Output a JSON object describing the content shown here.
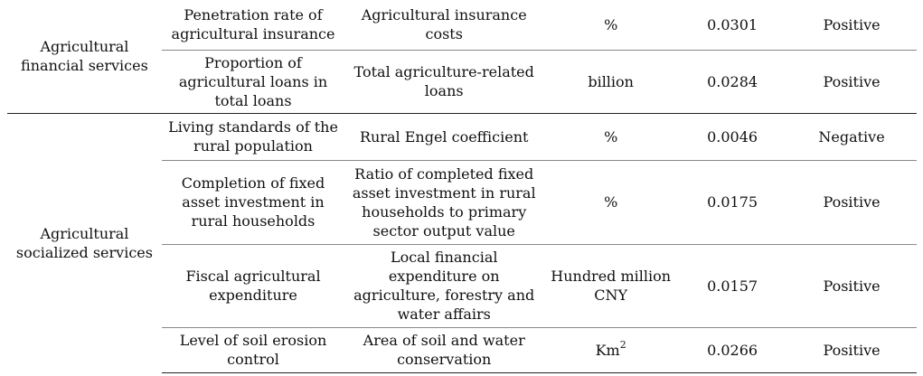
{
  "groups": [
    {
      "name": "Agricultural financial services",
      "rows": [
        {
          "indicator": "Penetration rate of agricultural insurance",
          "measure": "Agricultural insurance costs",
          "unit": "%",
          "weight": "0.0301",
          "direction": "Positive"
        },
        {
          "indicator": "Proportion of agricultural loans in total loans",
          "measure": "Total agriculture-related loans",
          "unit": "billion",
          "weight": "0.0284",
          "direction": "Positive"
        }
      ]
    },
    {
      "name": "Agricultural socialized services",
      "rows": [
        {
          "indicator": "Living standards of the rural population",
          "measure": "Rural Engel coefficient",
          "unit": "%",
          "weight": "0.0046",
          "direction": "Negative"
        },
        {
          "indicator": "Completion of fixed asset investment in rural households",
          "measure": "Ratio of completed fixed asset investment in rural households to primary sector output value",
          "unit": "%",
          "weight": "0.0175",
          "direction": "Positive"
        },
        {
          "indicator": "Fiscal agricultural expenditure",
          "measure": "Local financial expenditure on agriculture, forestry and water affairs",
          "unit": "Hundred million CNY",
          "weight": "0.0157",
          "direction": "Positive"
        },
        {
          "indicator": "Level of soil erosion control",
          "measure": "Area of soil and water conservation",
          "unit_base": "Km",
          "unit_sup": "2",
          "weight": "0.0266",
          "direction": "Positive"
        }
      ]
    }
  ]
}
